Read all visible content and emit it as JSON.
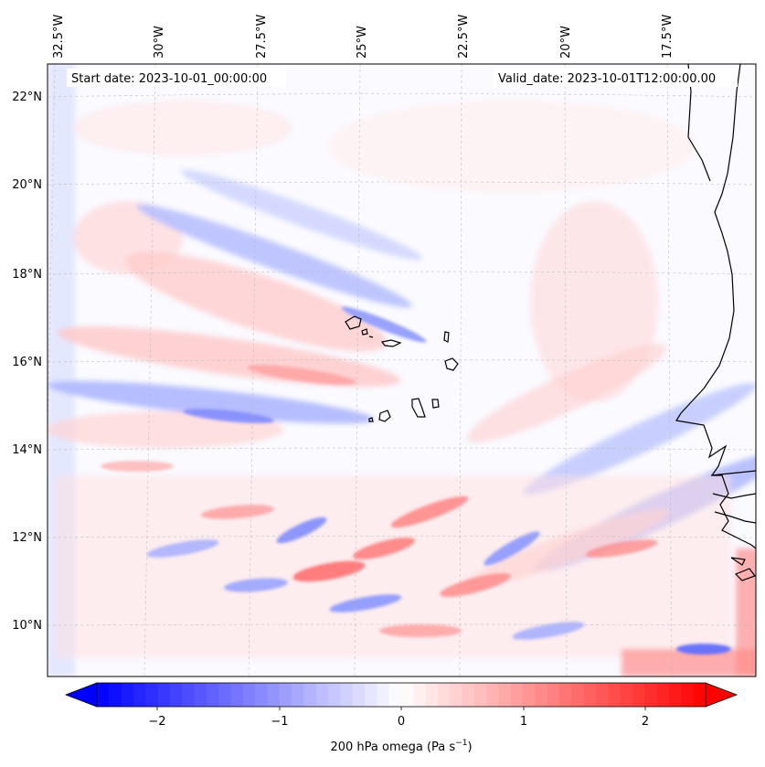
{
  "header": {
    "start_date": "Start date: 2023-10-01_00:00:00",
    "valid_date": "Valid_date: 2023-10-01T12:00:00.00"
  },
  "map": {
    "lon_labels": [
      "32.5°W",
      "30°W",
      "27.5°W",
      "25°W",
      "22.5°W",
      "20°W",
      "17.5°W"
    ],
    "lat_labels": [
      "22°N",
      "20°N",
      "18°N",
      "16°N",
      "14°N",
      "12°N",
      "10°N"
    ],
    "gridlines": true
  },
  "colorbar": {
    "label_text": "200 hPa omega (Pa s",
    "label_sup": "−1",
    "label_close": ")",
    "tick_labels": [
      "−2",
      "−1",
      "0",
      "1",
      "2"
    ],
    "range": [
      -2.7,
      2.7
    ],
    "extend": "both",
    "cmap": "bwr",
    "neg_color": "#0000ff",
    "zero_color": "#ffffff",
    "pos_color": "#ff0000"
  }
}
